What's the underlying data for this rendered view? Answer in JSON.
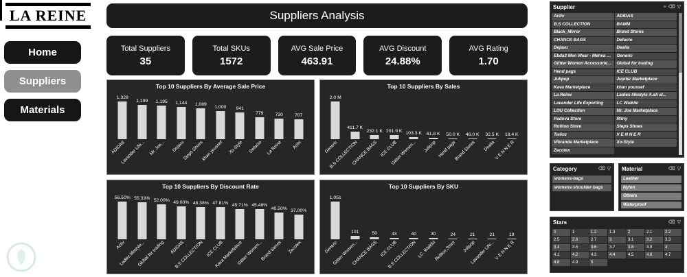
{
  "sidebar": {
    "logo": "LA REINE",
    "nav": [
      {
        "label": "Home",
        "active": false
      },
      {
        "label": "Suppliers",
        "active": true
      },
      {
        "label": "Materials",
        "active": false
      }
    ]
  },
  "header": {
    "title": "Suppliers Analysis"
  },
  "kpis": [
    {
      "label": "Total Suppliers",
      "value": "35"
    },
    {
      "label": "Total SKUs",
      "value": "1572"
    },
    {
      "label": "AVG Sale Price",
      "value": "463.91"
    },
    {
      "label": "AVG Discount",
      "value": "24.88%"
    },
    {
      "label": "AVG Rating",
      "value": "1.70"
    }
  ],
  "chart_data": [
    {
      "id": "avg-sale-price",
      "type": "bar",
      "title": "Top 10 Suppliers By Average Sale Price",
      "categories": [
        "ADIDAS",
        "Lavander Life...",
        "Mr. Joe...",
        "Dejavu",
        "Steps Shoes",
        "khan youssef",
        "Xo-Style",
        "Defacto",
        "La Reine",
        "Activ"
      ],
      "values": [
        1328,
        1199,
        1195,
        1144,
        1089,
        1000,
        941,
        779,
        730,
        707
      ],
      "labels": [
        "1,328",
        "1,199",
        "1,195",
        "1,144",
        "1,089",
        "1,000",
        "941",
        "779",
        "730",
        "707"
      ],
      "ylim": [
        0,
        1400
      ],
      "grid": false,
      "legend": "none"
    },
    {
      "id": "sales",
      "type": "bar",
      "title": "Top 10 Suppliers By Sales",
      "categories": [
        "Generic",
        "B.S COLLECTION",
        "CHANCE BAGS",
        "ICE CLUB",
        "Glitter Women...",
        "Julipop",
        "Hend pags",
        "Brand Stores",
        "Dealia",
        "V E N N E R"
      ],
      "values": [
        2000,
        411.7,
        232.1,
        201.9,
        103.3,
        81.8,
        50.0,
        46.0,
        32.5,
        18.4
      ],
      "labels": [
        "2.0 M",
        "411.7 K",
        "232.1 K",
        "201.9 K",
        "103.3 K",
        "81.8 K",
        "50.0 K",
        "46.0 K",
        "32.5 K",
        "18.4 K"
      ],
      "ylim": [
        0,
        2000000
      ],
      "grid": false,
      "legend": "none"
    },
    {
      "id": "discount-rate",
      "type": "bar",
      "title": "Top 10 Suppliers By Discount Rate",
      "categories": [
        "Activ",
        "Ladies lifestyle...",
        "Global for trading",
        "ADIDAS",
        "B.S COLLECTION",
        "ICE CLUB",
        "Kava Marketplace",
        "Glitter Women...",
        "Brand Stores",
        "Zecotex"
      ],
      "values": [
        56.5,
        55.33,
        52.0,
        49.0,
        48.38,
        47.81,
        45.71,
        45.48,
        40.5,
        37.0
      ],
      "labels": [
        "56.50%",
        "55.33%",
        "52.00%",
        "49.00%",
        "48.38%",
        "47.81%",
        "45.71%",
        "45.48%",
        "40.50%",
        "37.00%"
      ],
      "ylim": [
        0,
        60
      ],
      "grid": false,
      "legend": "none"
    },
    {
      "id": "sku",
      "type": "bar",
      "title": "Top 10 Suppliers By SKU",
      "categories": [
        "Generic",
        "Glitter Women...",
        "CHANCE BAGS",
        "ICE CLUB",
        "B.S COLLECTION",
        "LC. Waikiki",
        "Rotitoo Store",
        "Julipop",
        "Lavander Life...",
        "V E N N E R"
      ],
      "values": [
        1051,
        101,
        50,
        43,
        40,
        30,
        24,
        21,
        21,
        19
      ],
      "labels": [
        "1,051",
        "101",
        "50",
        "43",
        "40",
        "30",
        "24",
        "21",
        "21",
        "19"
      ],
      "ylim": [
        0,
        1100
      ],
      "grid": false,
      "legend": "none"
    }
  ],
  "slicers": {
    "supplier": {
      "title": "Supplier",
      "columns": [
        [
          "Activ",
          "B.S COLLECTION",
          "Black_Mirror",
          "CHANCE BAGS",
          "Dejavu",
          "Ebda3 Men Wear - Mehva on...",
          "Glitter Women Accessories...",
          "Hend pags",
          "Julipop",
          "Kava Marketplace",
          "La Reine",
          "Lavander Life Exporting",
          "LOU Collection",
          "Padova Store",
          "Rotitoo Store",
          "Twiinz",
          "Vibranda Marketplace",
          "Zecotex"
        ],
        [
          "ADIDAS",
          "BAMM",
          "Brand Stores",
          "Defacto",
          "Dealia",
          "Generic",
          "Global for trading",
          "ICE CLUB",
          "Jupiter Marketplace",
          "khan youssef",
          "Ladies lifestyle A.sh al...",
          "LC Waikiki",
          "Mr. Joe Marketplace",
          "Ritny",
          "Steps Shoes",
          "V E N N E R",
          "Xo-Style"
        ]
      ]
    },
    "category": {
      "title": "Category",
      "items": [
        "womens-bags",
        "womens-shoulder-bags"
      ]
    },
    "material": {
      "title": "Material",
      "items": [
        "Leather",
        "Nylon",
        "Others",
        "Waterproof"
      ]
    },
    "stars": {
      "title": "Stars",
      "items": [
        "0",
        "1",
        "1.2",
        "1.3",
        "2",
        "2.1",
        "2.2",
        "2.5",
        "2.6",
        "2.7",
        "3",
        "3.1",
        "3.2",
        "3.3",
        "3.4",
        "3.5",
        "3.6",
        "3.7",
        "3.8",
        "3.9",
        "4",
        "4.1",
        "4.2",
        "4.3",
        "4.4",
        "4.5",
        "4.6",
        "4.7",
        "4.8",
        "4.9",
        "5"
      ]
    }
  },
  "icons": {
    "menu": "≡",
    "clear": "⌫",
    "filter": "▽"
  },
  "colors": {
    "panel": "#262626",
    "card": "#1c1c1c",
    "bar": "#d9d9d9",
    "active_nav": "#8f8f8f",
    "background": "#ffffff",
    "text": "#ffffff"
  }
}
